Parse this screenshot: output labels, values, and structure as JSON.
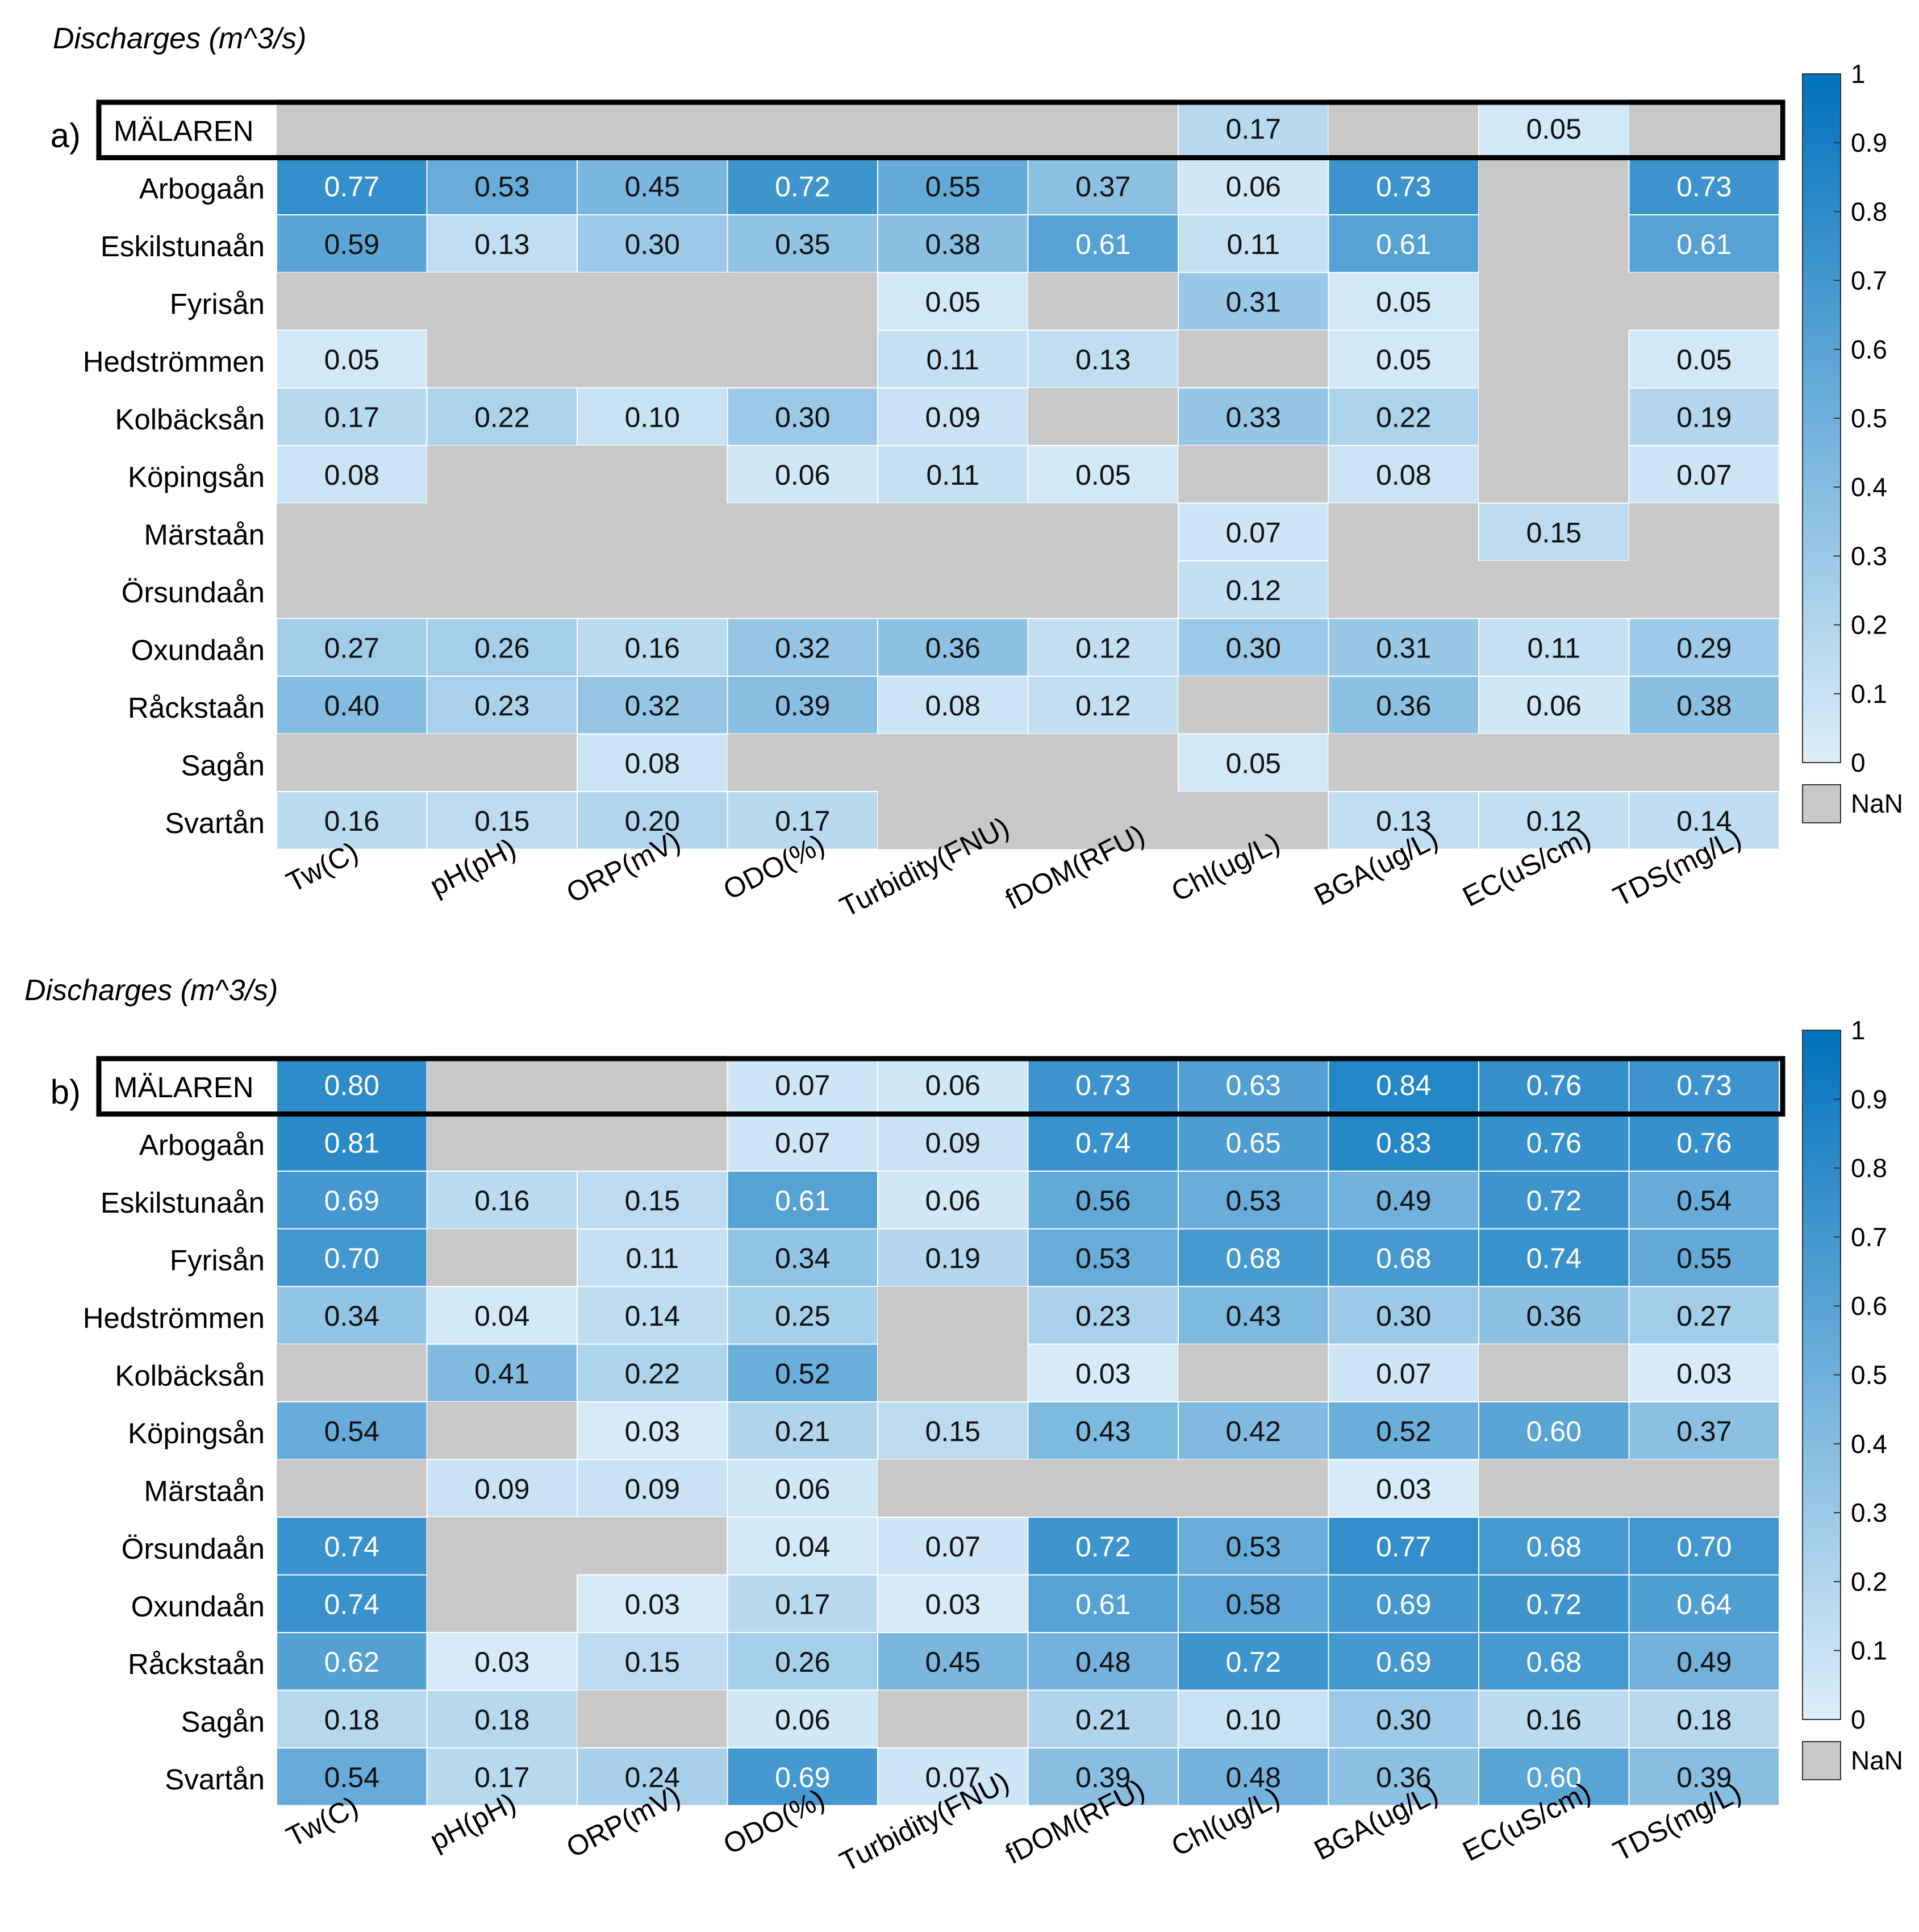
{
  "chart_data": [
    {
      "type": "heatmap",
      "panel_label": "a)",
      "title": "Discharges (m^3/s)",
      "columns": [
        "Tw(C)",
        "pH(pH)",
        "ORP(mV)",
        "ODO(%)",
        "Turbidity(FNU)",
        "fDOM(RFU)",
        "Chl(ug/L)",
        "BGA(ug/L)",
        "EC(uS/cm)",
        "TDS(mg/L)"
      ],
      "rows": [
        "MÄLAREN",
        "Arbogaån",
        "Eskilstunaån",
        "Fyrisån",
        "Hedströmmen",
        "Kolbäcksån",
        "Köpingsån",
        "Märstaån",
        "Örsundaån",
        "Oxundaån",
        "Råckstaån",
        "Sagån",
        "Svartån"
      ],
      "highlight_row": "MÄLAREN",
      "values": [
        [
          null,
          null,
          null,
          null,
          null,
          null,
          0.17,
          null,
          0.05,
          null
        ],
        [
          0.77,
          0.53,
          0.45,
          0.72,
          0.55,
          0.37,
          0.06,
          0.73,
          null,
          0.73
        ],
        [
          0.59,
          0.13,
          0.3,
          0.35,
          0.38,
          0.61,
          0.11,
          0.61,
          null,
          0.61
        ],
        [
          null,
          null,
          null,
          null,
          0.05,
          null,
          0.31,
          0.05,
          null,
          null
        ],
        [
          0.05,
          null,
          null,
          null,
          0.11,
          0.13,
          null,
          0.05,
          null,
          0.05
        ],
        [
          0.17,
          0.22,
          0.1,
          0.3,
          0.09,
          null,
          0.33,
          0.22,
          null,
          0.19
        ],
        [
          0.08,
          null,
          null,
          0.06,
          0.11,
          0.05,
          null,
          0.08,
          null,
          0.07
        ],
        [
          null,
          null,
          null,
          null,
          null,
          null,
          0.07,
          null,
          0.15,
          null
        ],
        [
          null,
          null,
          null,
          null,
          null,
          null,
          0.12,
          null,
          null,
          null
        ],
        [
          0.27,
          0.26,
          0.16,
          0.32,
          0.36,
          0.12,
          0.3,
          0.31,
          0.11,
          0.29
        ],
        [
          0.4,
          0.23,
          0.32,
          0.39,
          0.08,
          0.12,
          null,
          0.36,
          0.06,
          0.38
        ],
        [
          null,
          null,
          0.08,
          null,
          null,
          null,
          0.05,
          null,
          null,
          null
        ],
        [
          0.16,
          0.15,
          0.2,
          0.17,
          null,
          null,
          null,
          0.13,
          0.12,
          0.14
        ]
      ],
      "colorbar": {
        "range": [
          0,
          1
        ],
        "ticks": [
          "0",
          "0.1",
          "0.2",
          "0.3",
          "0.4",
          "0.5",
          "0.6",
          "0.7",
          "0.8",
          "0.9",
          "1"
        ],
        "nan_label": "NaN"
      }
    },
    {
      "type": "heatmap",
      "panel_label": "b)",
      "title": "Discharges (m^3/s)",
      "columns": [
        "Tw(C)",
        "pH(pH)",
        "ORP(mV)",
        "ODO(%)",
        "Turbidity(FNU)",
        "fDOM(RFU)",
        "Chl(ug/L)",
        "BGA(ug/L)",
        "EC(uS/cm)",
        "TDS(mg/L)"
      ],
      "rows": [
        "MÄLAREN",
        "Arbogaån",
        "Eskilstunaån",
        "Fyrisån",
        "Hedströmmen",
        "Kolbäcksån",
        "Köpingsån",
        "Märstaån",
        "Örsundaån",
        "Oxundaån",
        "Råckstaån",
        "Sagån",
        "Svartån"
      ],
      "highlight_row": "MÄLAREN",
      "values": [
        [
          0.8,
          null,
          null,
          0.07,
          0.06,
          0.73,
          0.63,
          0.84,
          0.76,
          0.73
        ],
        [
          0.81,
          null,
          null,
          0.07,
          0.09,
          0.74,
          0.65,
          0.83,
          0.76,
          0.76
        ],
        [
          0.69,
          0.16,
          0.15,
          0.61,
          0.06,
          0.56,
          0.53,
          0.49,
          0.72,
          0.54
        ],
        [
          0.7,
          null,
          0.11,
          0.34,
          0.19,
          0.53,
          0.68,
          0.68,
          0.74,
          0.55
        ],
        [
          0.34,
          0.04,
          0.14,
          0.25,
          null,
          0.23,
          0.43,
          0.3,
          0.36,
          0.27
        ],
        [
          null,
          0.41,
          0.22,
          0.52,
          null,
          0.03,
          null,
          0.07,
          null,
          0.03
        ],
        [
          0.54,
          null,
          0.03,
          0.21,
          0.15,
          0.43,
          0.42,
          0.52,
          0.6,
          0.37
        ],
        [
          null,
          0.09,
          0.09,
          0.06,
          null,
          null,
          null,
          0.03,
          null,
          null
        ],
        [
          0.74,
          null,
          null,
          0.04,
          0.07,
          0.72,
          0.53,
          0.77,
          0.68,
          0.7
        ],
        [
          0.74,
          null,
          0.03,
          0.17,
          0.03,
          0.61,
          0.58,
          0.69,
          0.72,
          0.64
        ],
        [
          0.62,
          0.03,
          0.15,
          0.26,
          0.45,
          0.48,
          0.72,
          0.69,
          0.68,
          0.49
        ],
        [
          0.18,
          0.18,
          null,
          0.06,
          null,
          0.21,
          0.1,
          0.3,
          0.16,
          0.18
        ],
        [
          0.54,
          0.17,
          0.24,
          0.69,
          0.07,
          0.39,
          0.48,
          0.36,
          0.6,
          0.39
        ]
      ],
      "colorbar": {
        "range": [
          0,
          1
        ],
        "ticks": [
          "0",
          "0.1",
          "0.2",
          "0.3",
          "0.4",
          "0.5",
          "0.6",
          "0.7",
          "0.8",
          "0.9",
          "1"
        ],
        "nan_label": "NaN"
      }
    }
  ],
  "colors": {
    "low": "#ddeef9",
    "high": "#0072bd",
    "nan": "#c8c8c8",
    "grid": "#ffffff",
    "frame": "#000000"
  }
}
